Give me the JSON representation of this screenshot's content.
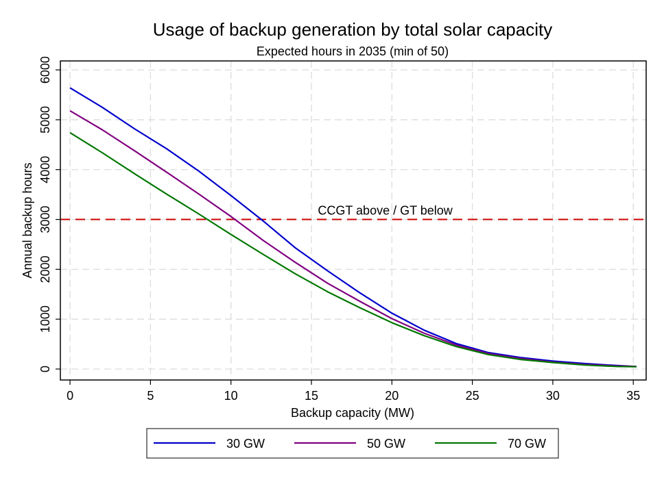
{
  "chart_data": {
    "type": "line",
    "title": "Usage of backup generation by total solar capacity",
    "subtitle": "Expected hours in 2035 (min of 50)",
    "xlabel": "Backup capacity (MW)",
    "ylabel": "Annual backup hours",
    "xlim": [
      -0.6,
      35.8
    ],
    "ylim": [
      -220,
      6180
    ],
    "xticks": [
      0,
      5,
      10,
      15,
      20,
      25,
      30,
      35
    ],
    "yticks": [
      0,
      1000,
      2000,
      3000,
      4000,
      5000,
      6000
    ],
    "grid": true,
    "series": [
      {
        "name": "30 GW",
        "color": "#0000cc",
        "x": [
          0,
          2,
          4,
          6,
          8,
          10,
          12,
          14,
          16,
          18,
          20,
          22,
          24,
          26,
          28,
          30,
          32,
          34,
          35.2
        ],
        "y": [
          5640,
          5250,
          4820,
          4420,
          3970,
          3480,
          2970,
          2430,
          1970,
          1530,
          1120,
          780,
          510,
          330,
          230,
          160,
          110,
          70,
          50
        ]
      },
      {
        "name": "50 GW",
        "color": "#800080",
        "x": [
          0,
          2,
          4,
          6,
          8,
          10,
          12,
          14,
          16,
          18,
          20,
          22,
          24,
          26,
          28,
          30,
          32,
          34,
          35.2
        ],
        "y": [
          5180,
          4800,
          4380,
          3950,
          3510,
          3060,
          2580,
          2140,
          1720,
          1360,
          1010,
          720,
          480,
          310,
          210,
          140,
          90,
          60,
          50
        ]
      },
      {
        "name": "70 GW",
        "color": "#007700",
        "x": [
          0,
          2,
          4,
          6,
          8,
          10,
          12,
          14,
          16,
          18,
          20,
          22,
          24,
          26,
          28,
          30,
          32,
          34,
          35.2
        ],
        "y": [
          4740,
          4340,
          3920,
          3510,
          3110,
          2700,
          2300,
          1910,
          1550,
          1230,
          930,
          670,
          450,
          290,
          190,
          130,
          80,
          50,
          45
        ]
      }
    ],
    "reference_line": {
      "y": 3000,
      "label": "CCGT above / GT below",
      "color": "#cc0000",
      "style": "dashed"
    },
    "legend": {
      "position": "bottom",
      "entries": [
        "30 GW",
        "50 GW",
        "70 GW"
      ]
    }
  }
}
